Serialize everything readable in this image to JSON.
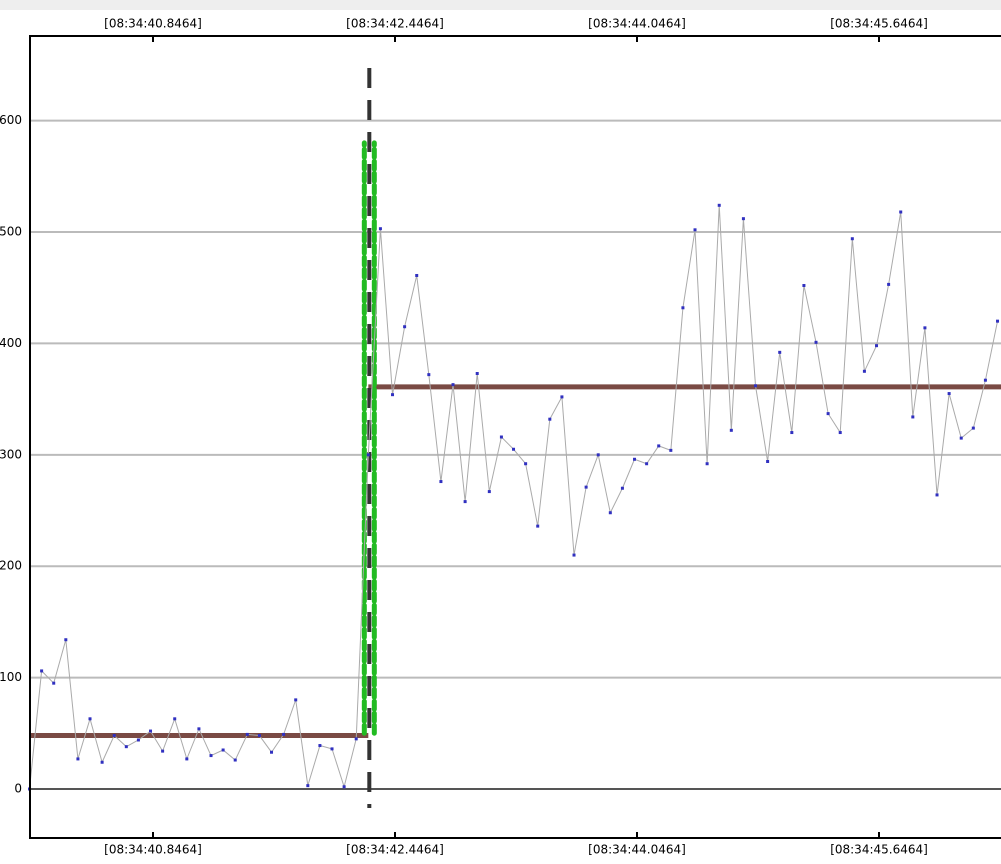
{
  "chart_data": {
    "type": "line",
    "x": [
      40.03,
      40.11,
      40.19,
      40.27,
      40.35,
      40.43,
      40.51,
      40.59,
      40.67,
      40.75,
      40.83,
      40.91,
      40.99,
      41.07,
      41.15,
      41.23,
      41.31,
      41.39,
      41.47,
      41.55,
      41.63,
      41.71,
      41.79,
      41.87,
      41.95,
      42.03,
      42.11,
      42.19,
      42.27,
      42.35,
      42.43,
      42.51,
      42.59,
      42.67,
      42.75,
      42.83,
      42.91,
      42.99,
      43.07,
      43.15,
      43.23,
      43.31,
      43.39,
      43.47,
      43.55,
      43.63,
      43.71,
      43.79,
      43.87,
      43.95,
      44.03,
      44.11,
      44.19,
      44.27,
      44.35,
      44.43,
      44.51,
      44.59,
      44.67,
      44.75,
      44.83,
      44.91,
      44.99,
      45.07,
      45.15,
      45.23,
      45.31,
      45.39,
      45.47,
      45.55,
      45.63,
      45.71,
      45.79,
      45.87,
      45.95,
      46.03,
      46.11,
      46.19,
      46.27,
      46.35,
      46.43
    ],
    "series": [
      {
        "color": "#3030c0",
        "line_color": "#aaaaaa",
        "values": [
          0,
          106,
          95,
          134,
          27,
          63,
          24,
          48,
          38,
          44,
          52,
          34,
          63,
          27,
          54,
          30,
          35,
          26,
          49,
          48,
          33,
          49,
          80,
          3,
          39,
          36,
          2,
          45,
          300,
          503,
          354,
          415,
          461,
          372,
          276,
          363,
          258,
          373,
          267,
          316,
          305,
          292,
          236,
          332,
          352,
          210,
          271,
          300,
          248,
          270,
          296,
          292,
          308,
          304,
          432,
          502,
          292,
          524,
          322,
          512,
          362,
          294,
          392,
          320,
          452,
          401,
          337,
          320,
          494,
          375,
          398,
          453,
          518,
          334,
          414,
          264,
          355,
          315,
          324,
          367,
          420
        ]
      }
    ],
    "mean_lines": [
      {
        "value": 48,
        "x": [
          40.03,
          42.27
        ],
        "color": "#7a4a44"
      },
      {
        "value": 361,
        "x": [
          42.27,
          46.453
        ],
        "color": "#7a4a44"
      }
    ],
    "change_point": 42.27,
    "change_band": [
      50,
      580
    ],
    "xlim": [
      40.0332,
      46.453
    ],
    "ylim": [
      -44,
      676
    ],
    "xticks": [
      {
        "value": 40.8464,
        "label": "[08:34:40.8464]"
      },
      {
        "value": 42.4464,
        "label": "[08:34:42.4464]"
      },
      {
        "value": 44.0464,
        "label": "[08:34:44.0464]"
      },
      {
        "value": 45.6464,
        "label": "[08:34:45.6464]"
      }
    ],
    "yticks": [
      0,
      100,
      200,
      300,
      400,
      500,
      600
    ],
    "grid": true
  }
}
